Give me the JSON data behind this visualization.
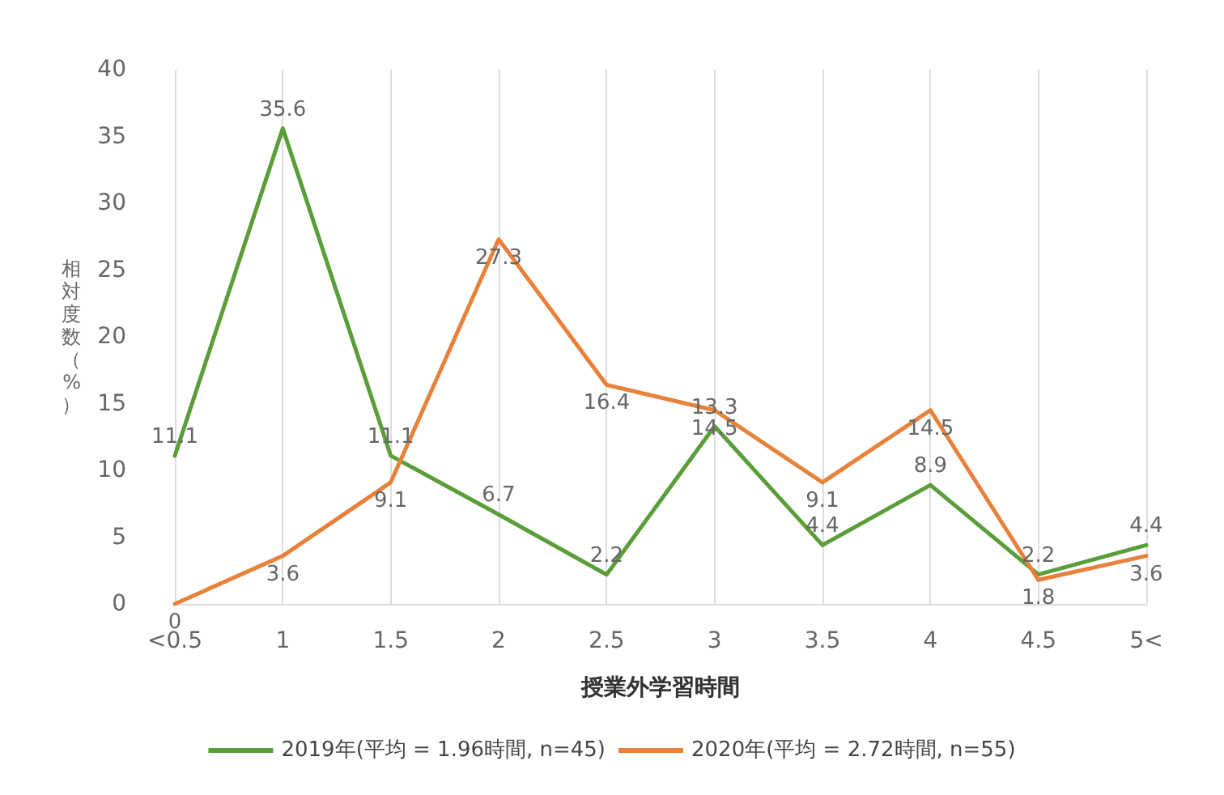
{
  "chart_data": {
    "type": "line",
    "xlabel": "授業外学習時間",
    "ylabel": "相対度数（%）",
    "categories": [
      "<0.5",
      "1",
      "1.5",
      "2",
      "2.5",
      "3",
      "3.5",
      "4",
      "4.5",
      "5<"
    ],
    "series": [
      {
        "name": "2019年(平均 = 1.96時間, n=45)",
        "color": "#5a9e3a",
        "values": [
          11.1,
          35.6,
          11.1,
          6.7,
          2.2,
          13.3,
          4.4,
          8.9,
          2.2,
          4.4
        ]
      },
      {
        "name": "2020年(平均 = 2.72時間, n=55)",
        "color": "#e8813a",
        "values": [
          0,
          3.6,
          9.1,
          27.3,
          16.4,
          14.5,
          9.1,
          14.5,
          1.8,
          3.6
        ]
      }
    ],
    "ylim": [
      0,
      40
    ],
    "yticks": [
      0,
      5,
      10,
      15,
      20,
      25,
      30,
      35,
      40
    ],
    "grid": "x",
    "legend": "bottom",
    "marker": "none",
    "line_style": "solid",
    "data_labels": true
  }
}
